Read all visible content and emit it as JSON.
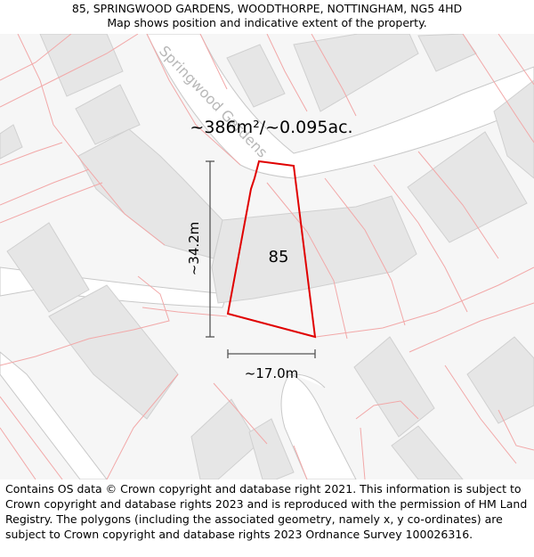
{
  "header": {
    "address": "85, SPRINGWOOD GARDENS, WOODTHORPE, NOTTINGHAM, NG5 4HD",
    "subtitle": "Map shows position and indicative extent of the property."
  },
  "map": {
    "street_label": "Springwood Gardens",
    "area_label": "~386m²/~0.095ac.",
    "plot_number": "85",
    "height_label": "~34.2m",
    "width_label": "~17.0m",
    "colors": {
      "background": "#f6f6f6",
      "building": "#e6e6e6",
      "parcel_line": "#f2a8a8",
      "road": "#ffffff",
      "road_edge": "#c8c8c8",
      "highlight": "#e00000",
      "dimension": "#555555"
    }
  },
  "footer": {
    "copyright": "Contains OS data © Crown copyright and database right 2021. This information is subject to Crown copyright and database rights 2023 and is reproduced with the permission of HM Land Registry. The polygons (including the associated geometry, namely x, y co-ordinates) are subject to Crown copyright and database rights 2023 Ordnance Survey 100026316."
  }
}
